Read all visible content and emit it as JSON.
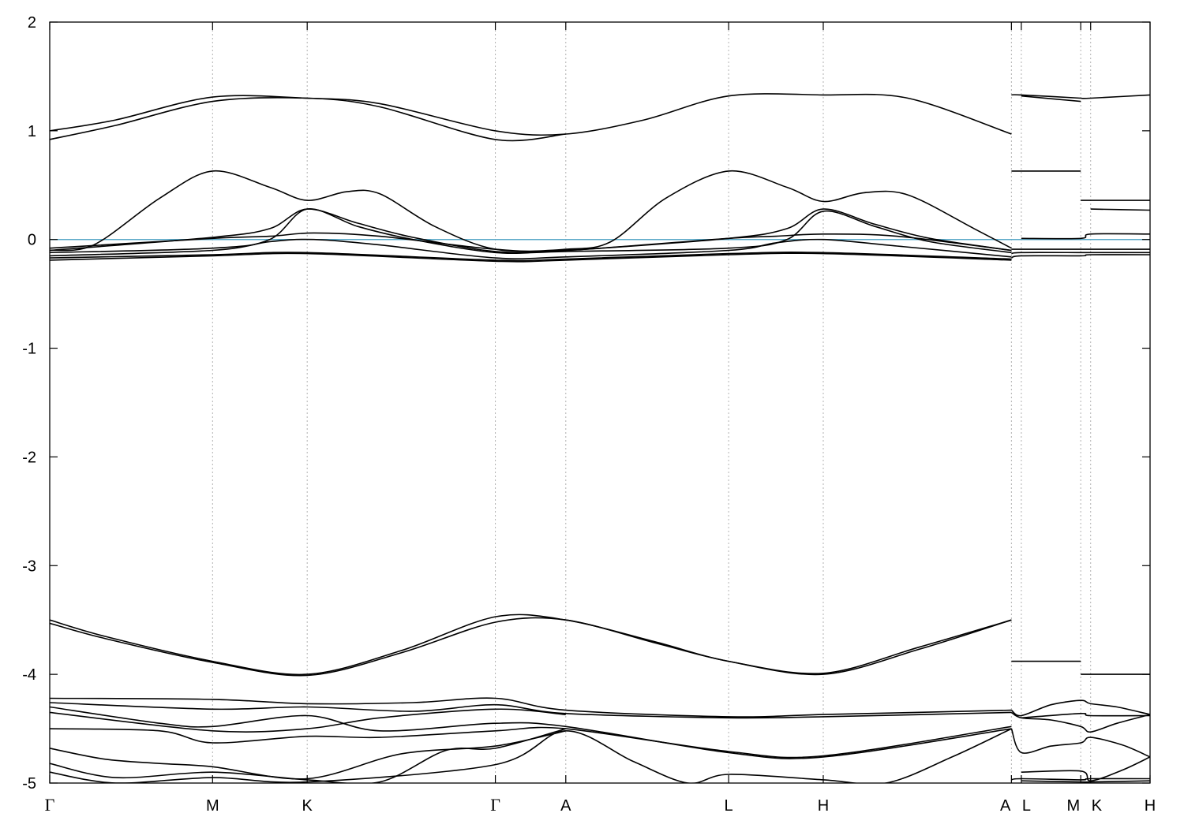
{
  "chart_data": {
    "type": "line",
    "title": "",
    "xlabel": "",
    "ylabel": "",
    "ylim": [
      -5,
      2
    ],
    "yticks": [
      -5,
      -4,
      -3,
      -2,
      -1,
      0,
      1,
      2
    ],
    "ytick_labels": [
      "-5",
      "-4",
      "-3",
      "-2",
      "-1",
      "0",
      "1",
      "2"
    ],
    "xlim": [
      0,
      1
    ],
    "kpoints": [
      {
        "label": "Γ",
        "x": 0.0
      },
      {
        "label": "M",
        "x": 0.148
      },
      {
        "label": "K",
        "x": 0.234
      },
      {
        "label": "Γ",
        "x": 0.405
      },
      {
        "label": "A",
        "x": 0.469
      },
      {
        "label": "L",
        "x": 0.617
      },
      {
        "label": "H",
        "x": 0.703
      },
      {
        "label": "A",
        "x": 0.874
      },
      {
        "label": "L",
        "x": 0.883
      },
      {
        "label": "M",
        "x": 0.937
      },
      {
        "label": "K",
        "x": 0.946
      },
      {
        "label": "H",
        "x": 1.0
      }
    ],
    "fermi_level": 0,
    "fermi_color": "#5aa9c8",
    "line_color": "#000000",
    "grid": "vertical dotted at k-points",
    "bands": [
      {
        "name": "",
        "x": [
          0.0,
          0.06,
          0.148,
          0.234,
          0.3,
          0.405,
          0.469,
          0.54,
          0.617,
          0.703,
          0.78,
          0.874
        ],
        "y": [
          1.0,
          1.1,
          1.31,
          1.3,
          1.25,
          1.0,
          0.97,
          1.1,
          1.32,
          1.33,
          1.3,
          0.97
        ]
      },
      {
        "name": "",
        "x": [
          0.0,
          0.06,
          0.148,
          0.234,
          0.3,
          0.405,
          0.469
        ],
        "y": [
          0.92,
          1.05,
          1.27,
          1.3,
          1.22,
          0.92,
          0.97
        ]
      },
      {
        "name": "",
        "x": [
          0.874,
          0.883,
          0.937
        ],
        "y": [
          1.33,
          1.33,
          1.3
        ]
      },
      {
        "name": "",
        "x": [
          0.883,
          0.937
        ],
        "y": [
          1.32,
          1.27
        ]
      },
      {
        "name": "",
        "x": [
          0.937,
          0.946,
          1.0
        ],
        "y": [
          1.3,
          1.3,
          1.33
        ]
      },
      {
        "name": "",
        "x": [
          0.0,
          0.04,
          0.1,
          0.148,
          0.2,
          0.234,
          0.27,
          0.3,
          0.35,
          0.405,
          0.469,
          0.51,
          0.56,
          0.617,
          0.67,
          0.703,
          0.74,
          0.78,
          0.84,
          0.874
        ],
        "y": [
          -0.1,
          -0.05,
          0.38,
          0.63,
          0.48,
          0.36,
          0.44,
          0.42,
          0.12,
          -0.09,
          -0.09,
          -0.02,
          0.38,
          0.63,
          0.48,
          0.35,
          0.43,
          0.41,
          0.1,
          -0.08
        ]
      },
      {
        "name": "",
        "x": [
          0.874,
          0.883,
          0.937
        ],
        "y": [
          0.63,
          0.63,
          0.63
        ]
      },
      {
        "name": "",
        "x": [
          0.937,
          0.946,
          1.0
        ],
        "y": [
          0.36,
          0.36,
          0.36
        ]
      },
      {
        "name": "",
        "x": [
          0.0,
          0.148,
          0.2,
          0.234,
          0.28,
          0.33,
          0.405,
          0.469,
          0.617,
          0.67,
          0.703,
          0.75,
          0.8,
          0.874
        ],
        "y": [
          -0.1,
          0.02,
          0.1,
          0.28,
          0.15,
          0.02,
          -0.11,
          -0.1,
          0.01,
          0.1,
          0.28,
          0.14,
          0.01,
          -0.1
        ]
      },
      {
        "name": "",
        "x": [
          0.0,
          0.148,
          0.2,
          0.234,
          0.28,
          0.33,
          0.405,
          0.469,
          0.617,
          0.67,
          0.703,
          0.75,
          0.8,
          0.874
        ],
        "y": [
          -0.12,
          -0.08,
          0.0,
          0.28,
          0.12,
          0.0,
          -0.12,
          -0.11,
          -0.08,
          0.0,
          0.26,
          0.12,
          -0.02,
          -0.12
        ]
      },
      {
        "name": "",
        "x": [
          0.946,
          1.0
        ],
        "y": [
          0.28,
          0.27
        ]
      },
      {
        "name": "",
        "x": [
          0.0,
          0.148,
          0.2,
          0.24,
          0.3,
          0.405,
          0.469,
          0.617,
          0.66,
          0.703,
          0.77,
          0.874
        ],
        "y": [
          -0.08,
          0.01,
          0.03,
          0.06,
          0.03,
          -0.09,
          -0.1,
          0.01,
          0.03,
          0.05,
          0.03,
          -0.1
        ]
      },
      {
        "name": "",
        "x": [
          0.0,
          0.148,
          0.2,
          0.24,
          0.3,
          0.405,
          0.469,
          0.617,
          0.66,
          0.703,
          0.77,
          0.874
        ],
        "y": [
          -0.15,
          -0.1,
          -0.02,
          0.0,
          -0.05,
          -0.17,
          -0.16,
          -0.1,
          -0.03,
          0.0,
          -0.06,
          -0.16
        ]
      },
      {
        "name": "",
        "x": [
          0.0,
          0.148,
          0.234,
          0.405,
          0.469,
          0.617,
          0.703,
          0.874
        ],
        "y": [
          -0.17,
          -0.14,
          -0.12,
          -0.19,
          -0.18,
          -0.13,
          -0.12,
          -0.18
        ]
      },
      {
        "name": "",
        "x": [
          0.0,
          0.148,
          0.234,
          0.405,
          0.469,
          0.617,
          0.703,
          0.874
        ],
        "y": [
          -0.19,
          -0.15,
          -0.13,
          -0.2,
          -0.19,
          -0.14,
          -0.13,
          -0.19
        ]
      },
      {
        "name": "",
        "x": [
          0.874,
          0.883,
          0.937,
          0.946,
          1.0
        ],
        "y": [
          -0.09,
          -0.09,
          -0.09,
          -0.09,
          -0.09
        ]
      },
      {
        "name": "",
        "x": [
          0.874,
          0.883,
          0.937,
          0.946,
          1.0
        ],
        "y": [
          -0.13,
          -0.12,
          -0.12,
          -0.12,
          -0.12
        ]
      },
      {
        "name": "",
        "x": [
          0.874,
          0.883,
          0.937,
          0.946,
          1.0
        ],
        "y": [
          -0.17,
          -0.15,
          -0.15,
          -0.14,
          -0.14
        ]
      },
      {
        "name": "",
        "x": [
          0.883,
          0.937,
          0.946,
          1.0
        ],
        "y": [
          0.01,
          0.01,
          0.05,
          0.05
        ]
      },
      {
        "name": "",
        "x": [
          0.0,
          0.05,
          0.148,
          0.234,
          0.32,
          0.405,
          0.469,
          0.55,
          0.617,
          0.703,
          0.79,
          0.874
        ],
        "y": [
          -3.5,
          -3.65,
          -3.88,
          -4.0,
          -3.78,
          -3.47,
          -3.5,
          -3.7,
          -3.88,
          -3.99,
          -3.75,
          -3.5
        ]
      },
      {
        "name": "",
        "x": [
          0.0,
          0.05,
          0.148,
          0.234,
          0.32,
          0.405,
          0.469,
          0.55,
          0.617,
          0.703,
          0.79,
          0.874
        ],
        "y": [
          -3.53,
          -3.67,
          -3.89,
          -4.01,
          -3.8,
          -3.52,
          -3.5,
          -3.71,
          -3.88,
          -4.0,
          -3.77,
          -3.5
        ]
      },
      {
        "name": "",
        "x": [
          0.874,
          0.883,
          0.937
        ],
        "y": [
          -3.88,
          -3.88,
          -3.88
        ]
      },
      {
        "name": "",
        "x": [
          0.937,
          0.946,
          1.0
        ],
        "y": [
          -4.0,
          -4.0,
          -4.0
        ]
      },
      {
        "name": "",
        "x": [
          0.0,
          0.148,
          0.234,
          0.33,
          0.405,
          0.469,
          0.617,
          0.703,
          0.874
        ],
        "y": [
          -4.22,
          -4.23,
          -4.27,
          -4.26,
          -4.22,
          -4.33,
          -4.39,
          -4.37,
          -4.33
        ]
      },
      {
        "name": "",
        "x": [
          0.0,
          0.148,
          0.234,
          0.33,
          0.405,
          0.469,
          0.617,
          0.703,
          0.874
        ],
        "y": [
          -4.26,
          -4.32,
          -4.3,
          -4.34,
          -4.28,
          -4.36,
          -4.4,
          -4.39,
          -4.35
        ]
      },
      {
        "name": "",
        "x": [
          0.0,
          0.1,
          0.148,
          0.234,
          0.3,
          0.405,
          0.469,
          0.617,
          0.703,
          0.874
        ],
        "y": [
          -4.3,
          -4.45,
          -4.48,
          -4.38,
          -4.52,
          -4.45,
          -4.48,
          -4.72,
          -4.76,
          -4.5
        ]
      },
      {
        "name": "",
        "x": [
          0.0,
          0.1,
          0.148,
          0.234,
          0.3,
          0.405,
          0.469,
          0.617,
          0.703,
          0.874
        ],
        "y": [
          -4.5,
          -4.52,
          -4.63,
          -4.57,
          -4.58,
          -4.52,
          -4.5,
          -4.71,
          -4.75,
          -4.48
        ]
      },
      {
        "name": "",
        "x": [
          0.0,
          0.148,
          0.234,
          0.3,
          0.405,
          0.469
        ],
        "y": [
          -4.35,
          -4.52,
          -4.5,
          -4.4,
          -4.32,
          -4.37
        ]
      },
      {
        "name": "",
        "x": [
          0.0,
          0.05,
          0.1,
          0.148,
          0.234,
          0.32,
          0.405,
          0.469
        ],
        "y": [
          -4.68,
          -4.78,
          -4.82,
          -4.85,
          -4.96,
          -4.73,
          -4.66,
          -4.52
        ]
      },
      {
        "name": "",
        "x": [
          0.0,
          0.06,
          0.148,
          0.234,
          0.3,
          0.36,
          0.405,
          0.469
        ],
        "y": [
          -4.82,
          -4.95,
          -4.9,
          -4.97,
          -4.99,
          -4.7,
          -4.68,
          -4.5
        ]
      },
      {
        "name": "",
        "x": [
          0.0,
          0.06,
          0.148,
          0.234,
          0.405,
          0.469,
          0.53,
          0.58,
          0.617,
          0.703,
          0.76,
          0.82,
          0.874
        ],
        "y": [
          -4.9,
          -5.0,
          -4.95,
          -4.99,
          -4.83,
          -4.52,
          -4.8,
          -5.0,
          -4.92,
          -4.97,
          -5.0,
          -4.76,
          -4.5
        ]
      },
      {
        "name": "",
        "x": [
          0.874,
          0.883,
          0.91,
          0.937,
          0.946,
          0.97,
          1.0
        ],
        "y": [
          -4.33,
          -4.38,
          -4.28,
          -4.24,
          -4.27,
          -4.3,
          -4.37
        ]
      },
      {
        "name": "",
        "x": [
          0.874,
          0.883,
          0.91,
          0.937,
          0.946,
          0.97,
          1.0
        ],
        "y": [
          -4.35,
          -4.4,
          -4.42,
          -4.48,
          -4.53,
          -4.45,
          -4.37
        ]
      },
      {
        "name": "",
        "x": [
          0.883,
          0.937,
          0.946,
          1.0
        ],
        "y": [
          -4.4,
          -4.36,
          -4.38,
          -4.38
        ]
      },
      {
        "name": "",
        "x": [
          0.874,
          0.883,
          0.91,
          0.937,
          0.946,
          0.975,
          1.0
        ],
        "y": [
          -4.5,
          -4.72,
          -4.66,
          -4.63,
          -4.58,
          -4.65,
          -4.76
        ]
      },
      {
        "name": "",
        "x": [
          0.883,
          0.937,
          0.946,
          0.975,
          1.0
        ],
        "y": [
          -4.9,
          -4.89,
          -4.98,
          -4.88,
          -4.76
        ]
      },
      {
        "name": "",
        "x": [
          0.874,
          0.883,
          0.937,
          0.946,
          1.0
        ],
        "y": [
          -4.97,
          -4.96,
          -4.97,
          -4.96,
          -4.96
        ]
      },
      {
        "name": "",
        "x": [
          0.883,
          0.937,
          0.946,
          1.0
        ],
        "y": [
          -4.98,
          -4.99,
          -4.99,
          -4.98
        ]
      }
    ]
  }
}
